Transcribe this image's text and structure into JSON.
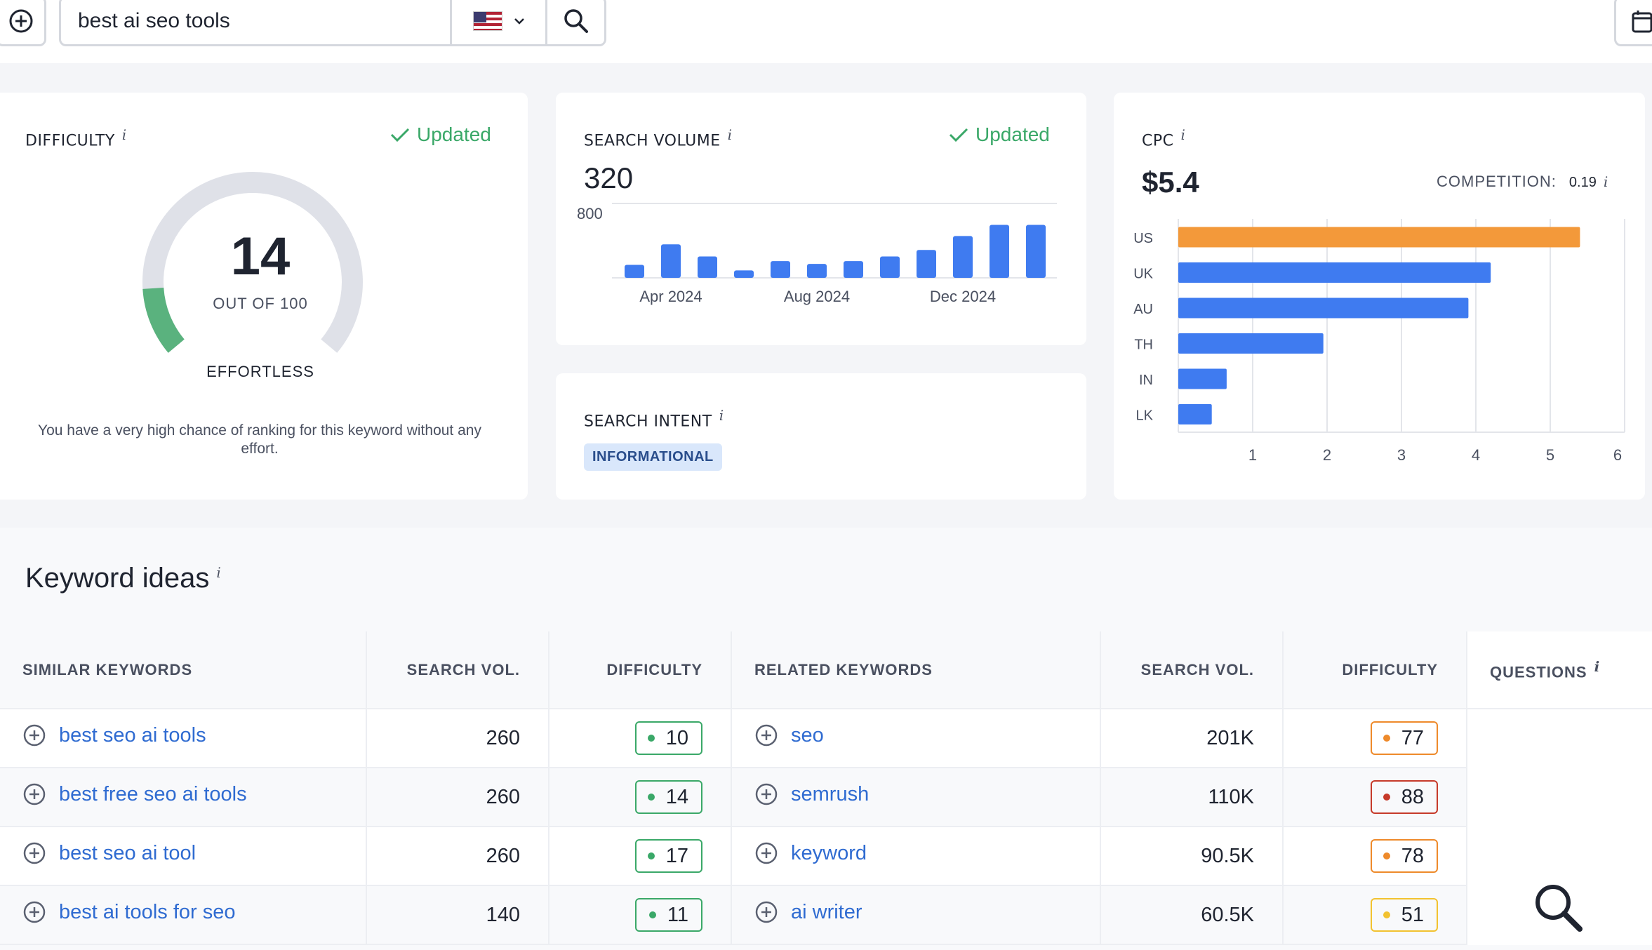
{
  "search": {
    "query": "best ai seo tools",
    "country": "US"
  },
  "difficulty": {
    "title": "DIFFICULTY",
    "info": "i",
    "status": "Updated",
    "value": "14",
    "max_label": "OUT OF 100",
    "level": "EFFORTLESS",
    "description": "You have a very high chance of ranking for this keyword without any effort.",
    "gauge_fraction": 0.14,
    "colors": {
      "track": "#dfe1e8",
      "fill": "#5ab27e",
      "updated": "#3aa868"
    }
  },
  "search_volume": {
    "title": "SEARCH VOLUME",
    "info": "i",
    "status": "Updated",
    "value": "320"
  },
  "search_intent": {
    "title": "SEARCH INTENT",
    "info": "i",
    "badge": "INFORMATIONAL"
  },
  "cpc": {
    "title": "CPC",
    "info": "i",
    "value": "$5.4",
    "competition_label": "COMPETITION:",
    "competition_value": "0.19"
  },
  "chart_data": [
    {
      "type": "bar",
      "categories": [
        "Mar 2024",
        "Apr 2024",
        "May 2024",
        "Jun 2024",
        "Jul 2024",
        "Aug 2024",
        "Sep 2024",
        "Oct 2024",
        "Nov 2024",
        "Dec 2024",
        "Jan 2025",
        "Feb 2025"
      ],
      "tick_labels": [
        "Apr 2024",
        "Aug 2024",
        "Dec 2024"
      ],
      "values": [
        140,
        360,
        230,
        80,
        180,
        150,
        180,
        230,
        300,
        450,
        570,
        570
      ],
      "ylim": [
        0,
        800
      ],
      "y_tick": "800",
      "color": "#3f7bf0",
      "grid": true
    },
    {
      "type": "bar",
      "orientation": "horizontal",
      "categories": [
        "US",
        "UK",
        "AU",
        "TH",
        "IN",
        "LK"
      ],
      "values": [
        5.4,
        4.2,
        3.9,
        1.95,
        0.65,
        0.45
      ],
      "highlight_color": "#f3993a",
      "color": "#3f7bf0",
      "xlim": [
        0,
        6
      ],
      "x_ticks": [
        "1",
        "2",
        "3",
        "4",
        "5",
        "6"
      ],
      "grid": true
    }
  ],
  "keyword_ideas": {
    "title": "Keyword ideas",
    "info": "i",
    "headers": {
      "similar": "SIMILAR KEYWORDS",
      "search_vol": "SEARCH VOL.",
      "difficulty": "DIFFICULTY",
      "related": "RELATED KEYWORDS",
      "search_vol2": "SEARCH VOL.",
      "difficulty2": "DIFFICULTY",
      "questions": "QUESTIONS"
    },
    "rows": [
      {
        "similar": "best seo ai tools",
        "similar_vol": "260",
        "similar_diff": "10",
        "similar_color": "#3aa868",
        "related": "seo",
        "related_vol": "201K",
        "related_diff": "77",
        "related_color": "#ee8a2b"
      },
      {
        "similar": "best free seo ai tools",
        "similar_vol": "260",
        "similar_diff": "14",
        "similar_color": "#3aa868",
        "related": "semrush",
        "related_vol": "110K",
        "related_diff": "88",
        "related_color": "#c63a2a"
      },
      {
        "similar": "best seo ai tool",
        "similar_vol": "260",
        "similar_diff": "17",
        "similar_color": "#3aa868",
        "related": "keyword",
        "related_vol": "90.5K",
        "related_diff": "78",
        "related_color": "#ee8a2b"
      },
      {
        "similar": "best ai tools for seo",
        "similar_vol": "140",
        "similar_diff": "11",
        "similar_color": "#3aa868",
        "related": "ai writer",
        "related_vol": "60.5K",
        "related_diff": "51",
        "related_color": "#f2c230"
      }
    ]
  }
}
